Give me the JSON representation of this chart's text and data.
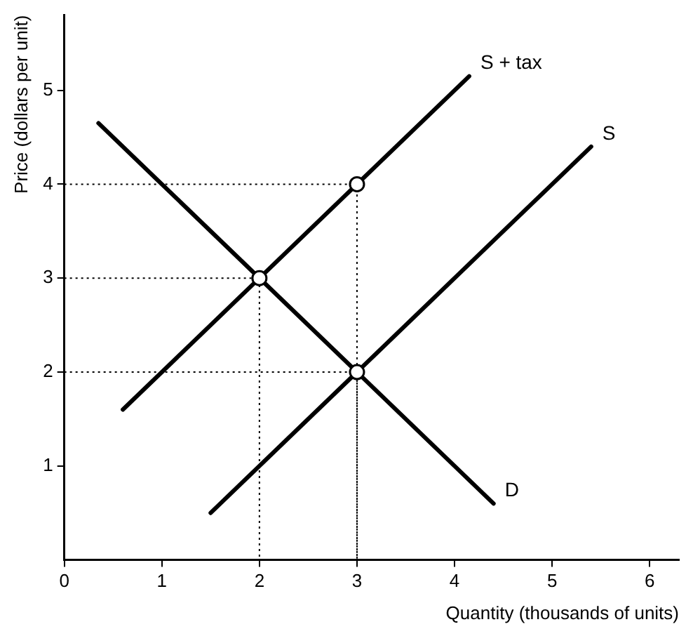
{
  "chart_data": {
    "type": "line",
    "xlabel": "Quantity (thousands of units)",
    "ylabel": "Price (dollars per unit)",
    "xlim": [
      0,
      6.3
    ],
    "ylim": [
      0,
      5.8
    ],
    "xticks": [
      0,
      1,
      2,
      3,
      4,
      5,
      6
    ],
    "yticks": [
      1,
      2,
      3,
      4,
      5
    ],
    "grid": false,
    "legend": false,
    "marker": "none",
    "series": [
      {
        "name": "S + tax",
        "x": [
          0.6,
          4.15
        ],
        "values": [
          1.6,
          5.15
        ],
        "color": "#000000"
      },
      {
        "name": "S",
        "x": [
          1.5,
          5.4
        ],
        "values": [
          0.5,
          4.4
        ],
        "color": "#000000"
      },
      {
        "name": "D",
        "x": [
          0.35,
          4.4
        ],
        "values": [
          4.65,
          0.6
        ],
        "color": "#000000"
      },
      {
        "x": [
          0,
          3,
          3
        ],
        "values": [
          4,
          4,
          0
        ],
        "color": "#000000",
        "line_style": "dotted"
      },
      {
        "x": [
          0,
          2,
          2
        ],
        "values": [
          3,
          3,
          0
        ],
        "color": "#000000",
        "line_style": "dotted"
      },
      {
        "x": [
          0,
          3,
          3
        ],
        "values": [
          2,
          2,
          0
        ],
        "color": "#000000",
        "line_style": "dotted"
      },
      {
        "type": "scatter",
        "x": [
          2,
          3,
          3
        ],
        "values": [
          3,
          2,
          4
        ],
        "color": "#000000",
        "marker": "circle"
      }
    ]
  }
}
